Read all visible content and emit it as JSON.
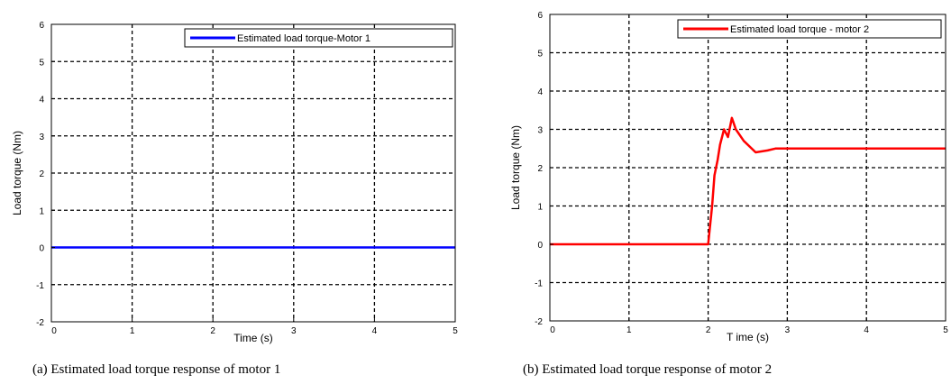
{
  "figures": [
    {
      "caption": "(a)  Estimated load torque response of motor 1",
      "chart_data": {
        "type": "line",
        "title": "",
        "xlabel": "Time  (s)",
        "ylabel": "Load torque (Nm)",
        "xlim": [
          0,
          5
        ],
        "ylim": [
          -2,
          6
        ],
        "xticks": [
          0,
          1,
          2,
          3,
          4,
          5
        ],
        "yticks": [
          -2,
          -1,
          0,
          1,
          2,
          3,
          4,
          5,
          6
        ],
        "grid": true,
        "legend_position": "top-right",
        "series": [
          {
            "name": "Estimated load torque-Motor 1",
            "color": "#0000ff",
            "x": [
              0,
              5
            ],
            "y": [
              0,
              0
            ]
          }
        ]
      }
    },
    {
      "caption": "(b)  Estimated load torque response of motor 2",
      "chart_data": {
        "type": "line",
        "title": "",
        "xlabel": "T ime  (s)",
        "ylabel": "Load torque (Nm)",
        "xlim": [
          0,
          5
        ],
        "ylim": [
          -2,
          6
        ],
        "xticks": [
          0,
          1,
          2,
          3,
          4,
          5
        ],
        "yticks": [
          -2,
          -1,
          0,
          1,
          2,
          3,
          4,
          5,
          6
        ],
        "grid": true,
        "legend_position": "top-right",
        "series": [
          {
            "name": "Estimated load torque - motor 2",
            "color": "#ff0000",
            "x": [
              0,
              2.0,
              2.05,
              2.08,
              2.12,
              2.15,
              2.2,
              2.25,
              2.3,
              2.35,
              2.45,
              2.6,
              2.75,
              2.85,
              3.0,
              4.0,
              5.0
            ],
            "y": [
              0,
              0,
              1.0,
              1.8,
              2.2,
              2.6,
              3.0,
              2.8,
              3.3,
              3.0,
              2.7,
              2.4,
              2.45,
              2.5,
              2.5,
              2.5,
              2.5
            ]
          }
        ]
      }
    }
  ]
}
